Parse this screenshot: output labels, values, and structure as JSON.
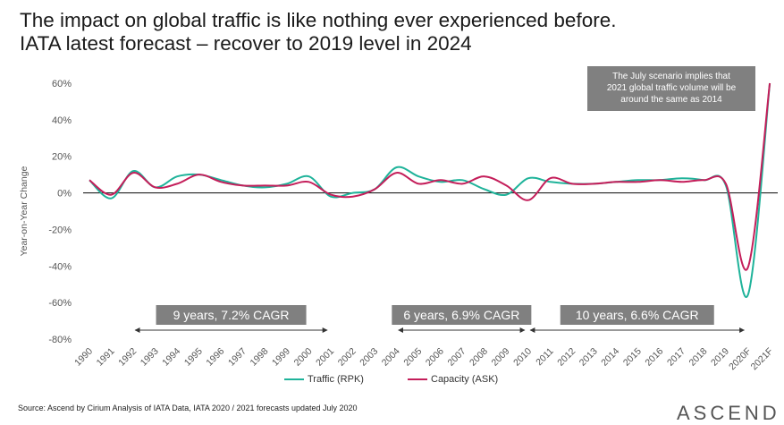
{
  "title_line1": "The impact on global traffic is like nothing ever experienced before.",
  "title_line2": "IATA latest forecast – recover to 2019 level in 2024",
  "source": "Source: Ascend by Cirium Analysis of IATA Data, IATA 2020 / 2021 forecasts updated July 2020",
  "brand": "ASCEND",
  "colors": {
    "traffic": "#1fb39a",
    "capacity": "#c41e5a",
    "annotation_bg": "#808080"
  },
  "chart_data": {
    "type": "line",
    "ylabel": "Year-on-Year Change",
    "ylim": [
      -80,
      60
    ],
    "yticks": [
      60,
      40,
      20,
      0,
      -20,
      -40,
      -60,
      -80
    ],
    "ytick_labels": [
      "60%",
      "40%",
      "20%",
      "0%",
      "-20%",
      "-40%",
      "-60%",
      "-80%"
    ],
    "categories": [
      "1990",
      "1991",
      "1992",
      "1993",
      "1994",
      "1995",
      "1996",
      "1997",
      "1998",
      "1999",
      "2000",
      "2001",
      "2002",
      "2003",
      "2004",
      "2005",
      "2006",
      "2007",
      "2008",
      "2009",
      "2010",
      "2011",
      "2012",
      "2013",
      "2014",
      "2015",
      "2016",
      "2017",
      "2018",
      "2019",
      "2020F",
      "2021F"
    ],
    "series": [
      {
        "name": "Traffic (RPK)",
        "values": [
          7,
          -3,
          12,
          3,
          9,
          10,
          7,
          4,
          3,
          5,
          9,
          -2,
          0,
          2,
          14,
          9,
          6,
          7,
          2,
          -1,
          8,
          6,
          5,
          5,
          6,
          7,
          7,
          8,
          7,
          4,
          -56,
          60
        ]
      },
      {
        "name": "Capacity (ASK)",
        "values": [
          7,
          -1,
          11,
          3,
          5,
          10,
          6,
          4,
          4,
          4,
          6,
          -1,
          -2,
          2,
          11,
          5,
          7,
          5,
          9,
          4,
          -4,
          8,
          5,
          5,
          6,
          6,
          7,
          6,
          7,
          5,
          -41,
          60
        ]
      }
    ],
    "annotations": [
      {
        "text": "The July scenario implies that 2021 global traffic volume will be around the same as 2014",
        "lines": [
          "The July scenario implies that",
          "2021 global traffic volume will be",
          "around the same as 2014"
        ]
      },
      {
        "text": "9 years, 7.2% CAGR",
        "from": "1992",
        "to": "2001"
      },
      {
        "text": "6 years, 6.9% CAGR",
        "from": "2004",
        "to": "2010"
      },
      {
        "text": "10 years, 6.6% CAGR",
        "from": "2010",
        "to": "2020F"
      }
    ],
    "grid": false,
    "legend": "bottom-center"
  }
}
